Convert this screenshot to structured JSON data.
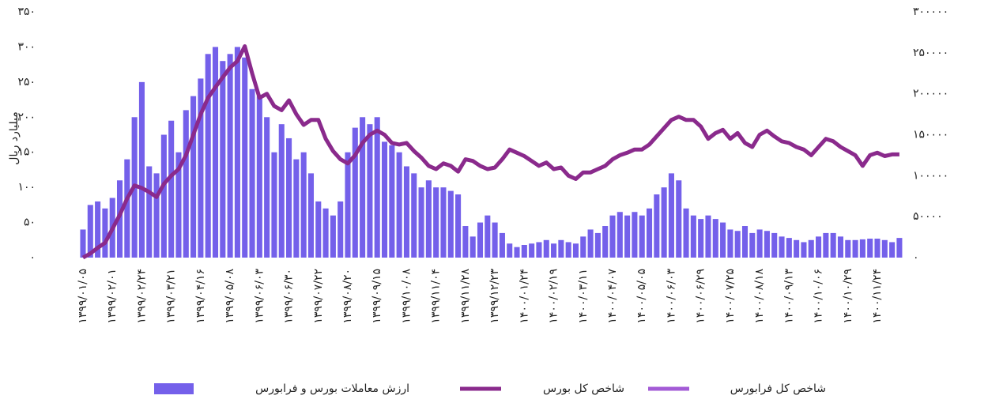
{
  "chart_data": {
    "type": "bar",
    "ylabel": "میلیارد ریال",
    "categories": [
      "۱۳۹۹/۰۱/۰۵",
      null,
      null,
      null,
      "۱۳۹۹/۰۲/۰۱",
      null,
      null,
      null,
      "۱۳۹۹/۰۲/۲۴",
      null,
      null,
      null,
      "۱۳۹۹/۰۳/۲۱",
      null,
      null,
      null,
      "۱۳۹۹/۰۴/۱۶",
      null,
      null,
      null,
      "۱۳۹۹/۰۵/۰۸",
      null,
      null,
      null,
      "۱۳۹۹/۰۶/۰۳",
      null,
      null,
      null,
      "۱۳۹۹/۰۶/۳۰",
      null,
      null,
      null,
      "۱۳۹۹/۰۷/۲۲",
      null,
      null,
      null,
      "۱۳۹۹/۰۸/۲۰",
      null,
      null,
      null,
      "۱۳۹۹/۰۹/۱۵",
      null,
      null,
      null,
      "۱۳۹۹/۱۰/۰۸",
      null,
      null,
      null,
      "۱۳۹۹/۱۱/۰۴",
      null,
      null,
      null,
      "۱۳۹۹/۱۱/۲۸",
      null,
      null,
      null,
      "۱۳۹۹/۱۲/۲۳",
      null,
      null,
      null,
      "۱۴۰۰/۰۱/۲۴",
      null,
      null,
      null,
      "۱۴۰۰/۰۲/۱۹",
      null,
      null,
      null,
      "۱۴۰۰/۰۳/۱۱",
      null,
      null,
      null,
      "۱۴۰۰/۰۴/۰۷",
      null,
      null,
      null,
      "۱۴۰۰/۰۵/۰۵",
      null,
      null,
      null,
      "۱۴۰۰/۰۶/۰۳",
      null,
      null,
      null,
      "۱۴۰۰/۰۶/۲۹",
      null,
      null,
      null,
      "۱۴۰۰/۰۷/۲۵",
      null,
      null,
      null,
      "۱۴۰۰/۰۸/۱۸",
      null,
      null,
      null,
      "۱۴۰۰/۰۹/۱۳",
      null,
      null,
      null,
      "۱۴۰۰/۱۰/۰۶",
      null,
      null,
      null,
      "۱۴۰۰/۱۰/۲۹",
      null,
      null,
      null,
      "۱۴۰۰/۱۱/۲۴",
      null,
      null,
      null
    ],
    "ylim": [
      0,
      350
    ],
    "yticks": [
      {
        "value": 0,
        "label": "۰"
      },
      {
        "value": 50,
        "label": "۵۰"
      },
      {
        "value": 100,
        "label": "۱۰۰"
      },
      {
        "value": 150,
        "label": "۱۵۰"
      },
      {
        "value": 200,
        "label": "۲۰۰"
      },
      {
        "value": 250,
        "label": "۲۵۰"
      },
      {
        "value": 300,
        "label": "۳۰۰"
      },
      {
        "value": 350,
        "label": "۳۵۰"
      }
    ],
    "y2lim": [
      0,
      300000
    ],
    "y2ticks": [
      {
        "value": 0,
        "label": "۰"
      },
      {
        "value": 50000,
        "label": "۵۰۰۰۰"
      },
      {
        "value": 100000,
        "label": "۱۰۰۰۰۰"
      },
      {
        "value": 150000,
        "label": "۱۵۰۰۰۰"
      },
      {
        "value": 200000,
        "label": "۲۰۰۰۰۰"
      },
      {
        "value": 250000,
        "label": "۲۵۰۰۰۰"
      },
      {
        "value": 300000,
        "label": "۳۰۰۰۰۰"
      }
    ],
    "series": [
      {
        "name": "ارزش معاملات  بورس و فرابورس",
        "type": "bar",
        "axis": "y",
        "color": "#7460ea",
        "values": [
          40,
          75,
          80,
          70,
          85,
          110,
          140,
          200,
          250,
          130,
          120,
          175,
          195,
          150,
          210,
          230,
          255,
          290,
          300,
          280,
          290,
          300,
          285,
          240,
          230,
          200,
          150,
          190,
          170,
          140,
          150,
          120,
          80,
          70,
          60,
          80,
          150,
          185,
          200,
          190,
          200,
          165,
          160,
          150,
          130,
          120,
          100,
          110,
          100,
          100,
          95,
          90,
          45,
          30,
          50,
          60,
          50,
          35,
          20,
          15,
          18,
          20,
          22,
          25,
          20,
          25,
          22,
          20,
          30,
          40,
          35,
          45,
          60,
          65,
          60,
          65,
          60,
          70,
          90,
          100,
          120,
          110,
          70,
          60,
          55,
          60,
          55,
          50,
          40,
          38,
          45,
          35,
          40,
          38,
          35,
          30,
          28,
          25,
          22,
          25,
          30,
          35,
          35,
          30,
          25,
          25,
          26,
          27,
          27,
          25,
          22,
          28
        ]
      },
      {
        "name": "شاخص کل بورس",
        "type": "line",
        "axis": "y2",
        "color": "#8a2a8c",
        "values": [
          0,
          5000,
          12000,
          18000,
          35000,
          52000,
          72000,
          88000,
          85000,
          80000,
          74000,
          90000,
          100000,
          108000,
          125000,
          150000,
          175000,
          195000,
          208000,
          220000,
          232000,
          240000,
          258000,
          225000,
          195000,
          200000,
          185000,
          180000,
          192000,
          175000,
          162000,
          168000,
          168000,
          145000,
          130000,
          120000,
          115000,
          125000,
          140000,
          150000,
          155000,
          150000,
          140000,
          138000,
          140000,
          130000,
          122000,
          112000,
          108000,
          115000,
          112000,
          105000,
          120000,
          118000,
          112000,
          108000,
          110000,
          120000,
          132000,
          128000,
          124000,
          118000,
          112000,
          116000,
          108000,
          110000,
          100000,
          96000,
          104000,
          104000,
          108000,
          112000,
          120000,
          125000,
          128000,
          132000,
          132000,
          138000,
          148000,
          158000,
          168000,
          172000,
          168000,
          168000,
          160000,
          145000,
          152000,
          156000,
          145000,
          152000,
          140000,
          135000,
          150000,
          155000,
          148000,
          142000,
          140000,
          135000,
          132000,
          125000,
          135000,
          145000,
          142000,
          135000,
          130000,
          125000,
          112000,
          125000,
          128000,
          124000,
          126000,
          126000
        ]
      },
      {
        "name": "شاخص کل فرابورس",
        "type": "line",
        "axis": "y2",
        "color": "#a35bd6",
        "values": [
          null,
          null,
          null,
          null,
          null,
          null,
          null,
          null,
          null,
          null,
          null,
          null,
          null,
          null,
          null,
          null,
          null,
          null,
          null,
          null,
          null,
          null,
          null,
          null,
          null,
          null,
          null,
          null,
          null,
          null,
          null,
          null,
          null,
          null,
          null,
          null,
          null,
          null,
          null,
          null,
          null,
          null,
          null,
          null,
          null,
          null,
          null,
          null,
          null,
          null,
          null,
          null,
          null,
          null,
          null,
          null,
          null,
          null,
          null,
          null,
          null,
          null,
          null,
          null,
          null,
          null,
          null,
          null,
          null,
          null,
          null,
          null,
          null,
          null,
          null,
          null,
          null,
          null,
          null,
          null,
          null,
          null,
          null,
          null,
          null,
          null,
          null,
          null,
          null,
          null,
          null,
          null,
          null,
          null,
          null,
          null,
          null,
          null,
          null,
          null,
          null,
          null,
          null,
          null,
          null,
          null,
          null,
          null,
          null,
          null,
          null,
          null
        ]
      }
    ]
  }
}
